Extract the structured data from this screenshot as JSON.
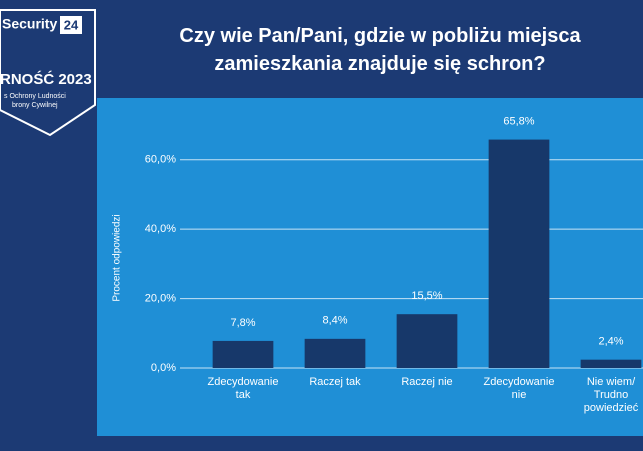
{
  "logo": {
    "brand": "Security",
    "number": "24",
    "line1": "RNOŚĆ 2023",
    "line2": "s Ochrony Ludności",
    "line3": "brony Cywilnej"
  },
  "chart_data": {
    "type": "bar",
    "title": "Czy wie Pan/Pani, gdzie w pobliżu miejsca zamieszkania znajduje się schron?",
    "y_label": "Procent odpowiedzi",
    "categories": [
      "Zdecydowanie tak",
      "Raczej tak",
      "Raczej nie",
      "Zdecydowanie nie",
      "Nie wiem/ Trudno powiedzieć"
    ],
    "values": [
      7.8,
      8.4,
      15.5,
      65.8,
      2.4
    ],
    "value_labels": [
      "7,8%",
      "8,4%",
      "15,5%",
      "65,8%",
      "2,4%"
    ],
    "color": "#17386a",
    "ylim": [
      0,
      70
    ],
    "yticks": [
      {
        "value": 0,
        "label": "0,0%"
      },
      {
        "value": 20,
        "label": "20,0%"
      },
      {
        "value": 40,
        "label": "40,0%"
      },
      {
        "value": 60,
        "label": "60,0%"
      }
    ],
    "grid": true
  }
}
